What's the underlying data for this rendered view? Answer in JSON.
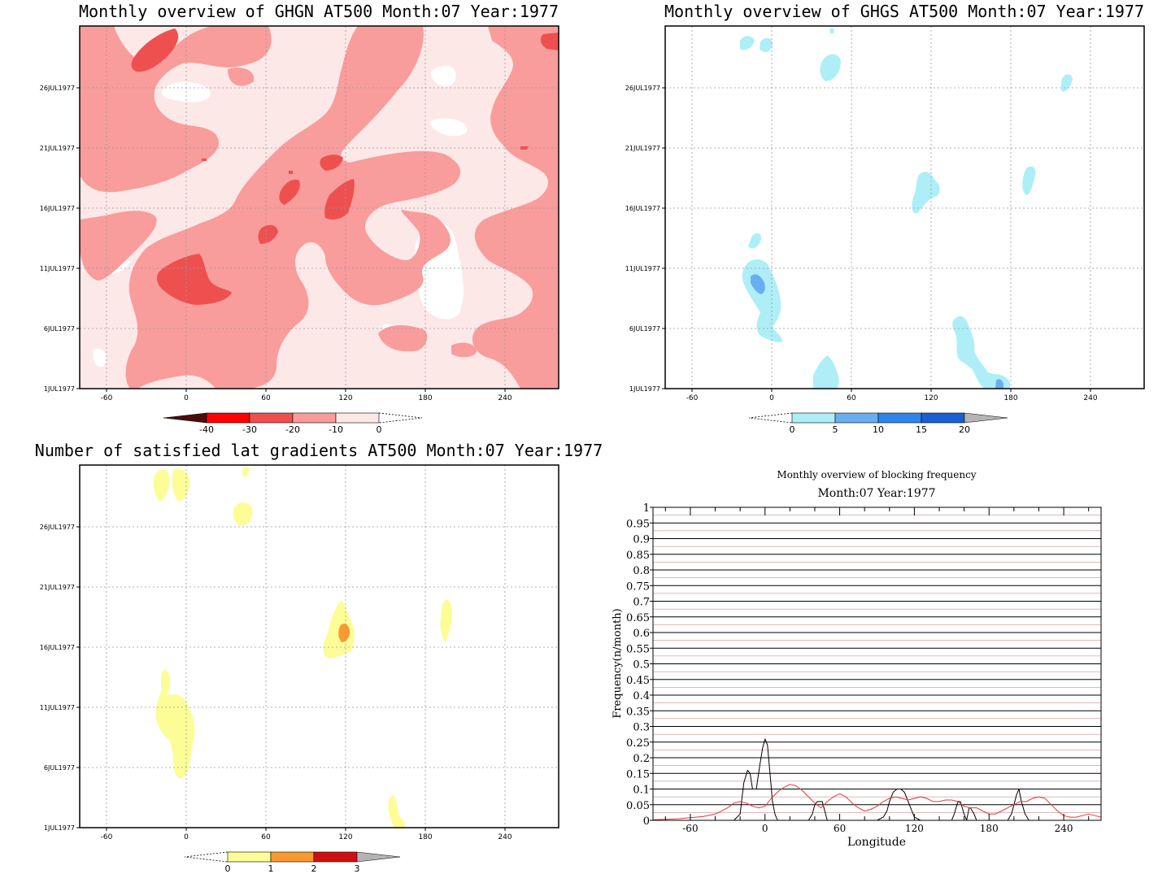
{
  "panels": {
    "ghgn": {
      "title": "Monthly overview of GHGN AT500 Month:07 Year:1977",
      "x_ticks": [
        "-60",
        "0",
        "60",
        "120",
        "180",
        "240"
      ],
      "y_ticks": [
        "1JUL1977",
        "6JUL1977",
        "11JUL1977",
        "16JUL1977",
        "21JUL1977",
        "26JUL1977"
      ],
      "colorbar": {
        "labels": [
          "-40",
          "-30",
          "-20",
          "-10",
          "0"
        ],
        "colors": [
          "#4a0d0d",
          "#ff0000",
          "#ee5050",
          "#f99c9c",
          "#fde8e8"
        ]
      }
    },
    "ghgs": {
      "title": "Monthly overview of GHGS AT500 Month:07 Year:1977",
      "x_ticks": [
        "-60",
        "0",
        "60",
        "120",
        "180",
        "240"
      ],
      "y_ticks": [
        "1JUL1977",
        "6JUL1977",
        "11JUL1977",
        "16JUL1977",
        "21JUL1977",
        "26JUL1977"
      ],
      "colorbar": {
        "labels": [
          "0",
          "5",
          "10",
          "15",
          "20"
        ],
        "colors": [
          "#aeeef7",
          "#6aaef0",
          "#2f86ea",
          "#1a60d0",
          "#b4b4b4"
        ]
      }
    },
    "lat_grad": {
      "title": "Number of satisfied lat gradients AT500 Month:07 Year:1977",
      "x_ticks": [
        "-60",
        "0",
        "60",
        "120",
        "180",
        "240"
      ],
      "y_ticks": [
        "1JUL1977",
        "6JUL1977",
        "11JUL1977",
        "16JUL1977",
        "21JUL1977",
        "26JUL1977"
      ],
      "colorbar": {
        "labels": [
          "0",
          "1",
          "2",
          "3"
        ],
        "colors": [
          "#fdfd98",
          "#f99a30",
          "#d01010",
          "#b4b4b4"
        ]
      }
    }
  },
  "chart_data": {
    "type": "line",
    "title": "Monthly overview of blocking frequency",
    "subtitle": "Month:07 Year:1977",
    "xlabel": "Longitude",
    "ylabel": "Frequency(n/month)",
    "xlim": [
      -90,
      270
    ],
    "ylim": [
      0,
      1
    ],
    "x_ticks": [
      "-60",
      "0",
      "60",
      "120",
      "180",
      "240"
    ],
    "y_ticks": [
      "0",
      "0.05",
      "0.1",
      "0.15",
      "0.2",
      "0.25",
      "0.3",
      "0.35",
      "0.4",
      "0.45",
      "0.5",
      "0.55",
      "0.6",
      "0.65",
      "0.7",
      "0.75",
      "0.8",
      "0.85",
      "0.9",
      "0.95",
      "1"
    ],
    "grid": true,
    "series": [
      {
        "color": "#000000",
        "x": [
          -90,
          -25,
          -20,
          -17,
          -14,
          -12,
          -10,
          -7,
          -4,
          -2,
          0,
          2,
          4,
          6,
          8,
          10,
          15,
          20,
          25,
          35,
          38,
          40,
          42,
          44,
          46,
          48,
          50,
          60,
          90,
          95,
          98,
          100,
          103,
          106,
          109,
          112,
          115,
          118,
          120,
          125,
          150,
          152,
          155,
          157,
          160,
          162,
          163,
          164,
          165,
          168,
          170,
          195,
          198,
          200,
          202,
          204,
          206,
          209,
          212,
          270
        ],
        "y": [
          0,
          0,
          0.02,
          0.12,
          0.16,
          0.15,
          0.1,
          0.1,
          0.18,
          0.23,
          0.26,
          0.24,
          0.15,
          0.06,
          0.02,
          0,
          0,
          0,
          0,
          0,
          0.02,
          0.05,
          0.06,
          0.06,
          0.06,
          0.03,
          0,
          0,
          0,
          0.01,
          0.03,
          0.06,
          0.09,
          0.1,
          0.1,
          0.09,
          0.06,
          0.03,
          0.01,
          0,
          0,
          0.02,
          0.06,
          0.06,
          0.02,
          0,
          0.02,
          0.04,
          0.04,
          0.02,
          0,
          0,
          0.02,
          0.05,
          0.08,
          0.1,
          0.06,
          0.02,
          0,
          0
        ]
      },
      {
        "color": "#e23a3a",
        "x": [
          -90,
          -70,
          -50,
          -40,
          -30,
          -25,
          -20,
          -15,
          -10,
          -5,
          0,
          5,
          10,
          15,
          20,
          25,
          30,
          35,
          40,
          45,
          50,
          55,
          60,
          65,
          70,
          75,
          80,
          85,
          90,
          95,
          100,
          105,
          110,
          115,
          120,
          125,
          130,
          135,
          140,
          145,
          150,
          155,
          160,
          165,
          170,
          175,
          180,
          185,
          190,
          195,
          200,
          205,
          210,
          215,
          220,
          225,
          230,
          235,
          240,
          245,
          250,
          255,
          260,
          265,
          270
        ],
        "y": [
          0.002,
          0.005,
          0.012,
          0.02,
          0.04,
          0.055,
          0.06,
          0.055,
          0.045,
          0.04,
          0.045,
          0.07,
          0.09,
          0.105,
          0.115,
          0.11,
          0.095,
          0.075,
          0.055,
          0.04,
          0.06,
          0.075,
          0.085,
          0.075,
          0.055,
          0.04,
          0.03,
          0.035,
          0.045,
          0.06,
          0.07,
          0.075,
          0.07,
          0.065,
          0.07,
          0.075,
          0.07,
          0.06,
          0.06,
          0.065,
          0.065,
          0.06,
          0.045,
          0.04,
          0.04,
          0.03,
          0.02,
          0.02,
          0.03,
          0.04,
          0.05,
          0.06,
          0.06,
          0.07,
          0.075,
          0.07,
          0.05,
          0.03,
          0.015,
          0.01,
          0.01,
          0.015,
          0.02,
          0.015,
          0.01
        ]
      }
    ]
  }
}
